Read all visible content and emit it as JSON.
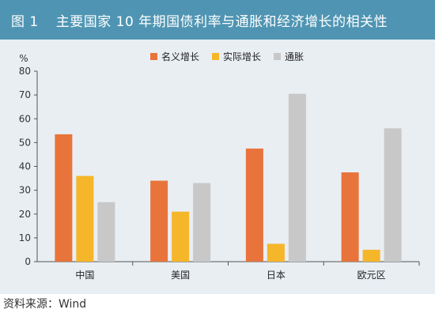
{
  "figure": {
    "label": "图 1",
    "title": "主要国家 10 年期国债利率与通胀和经济增长的相关性",
    "source": "资料来源：Wind"
  },
  "colors": {
    "header_bg": "#4f95b3",
    "panel_bg": "#e9eef3",
    "nominal": "#e8743b",
    "real": "#f5b629",
    "inflation": "#c8c8c8"
  },
  "chart_data": {
    "type": "bar",
    "ylabel": "%",
    "ylim": [
      0,
      80
    ],
    "yticks": [
      0,
      10,
      20,
      30,
      40,
      50,
      60,
      70,
      80
    ],
    "grid": false,
    "legend_position": "top-right",
    "categories": [
      "中国",
      "美国",
      "日本",
      "欧元区"
    ],
    "series": [
      {
        "name": "名义增长",
        "color": "#e8743b",
        "values": [
          53.5,
          34,
          47.5,
          37.5
        ]
      },
      {
        "name": "实际增长",
        "color": "#f5b629",
        "values": [
          36,
          21,
          7.5,
          5
        ]
      },
      {
        "name": "通胀",
        "color": "#c8c8c8",
        "values": [
          25,
          33,
          70.5,
          56
        ]
      }
    ]
  }
}
